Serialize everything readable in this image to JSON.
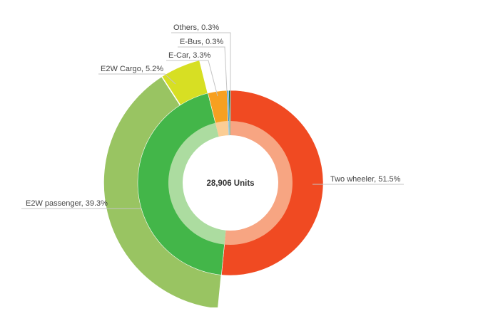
{
  "chart_data": {
    "type": "pie",
    "center_label": "28,906 Units",
    "slices": [
      {
        "name": "Two wheeler",
        "value": 51.5,
        "label": "Two wheeler, 51.5%",
        "color": "#f04a22",
        "inner_color": "#f7a582"
      },
      {
        "name": "E2W passenger",
        "value": 39.3,
        "label": "E2W passenger, 39.3%",
        "color": "#43b649",
        "inner_color": "#acdca0",
        "outer_color": "#99c462"
      },
      {
        "name": "E2W Cargo",
        "value": 5.2,
        "label": "E2W Cargo, 5.2%",
        "color": "#43b649",
        "inner_color": "#acdca0",
        "outer_color": "#d7df23"
      },
      {
        "name": "E-Car",
        "value": 3.3,
        "label": "E-Car, 3.3%",
        "color": "#f7a021",
        "inner_color": "#fbcd95"
      },
      {
        "name": "E-Bus",
        "value": 0.3,
        "label": "E-Bus, 0.3%",
        "color": "#2a8ac8",
        "inner_color": "#9ac9ea"
      },
      {
        "name": "Others",
        "value": 0.3,
        "label": "Others, 0.3%",
        "color": "#1c6b3a",
        "inner_color": "#8fbf9c"
      }
    ]
  }
}
